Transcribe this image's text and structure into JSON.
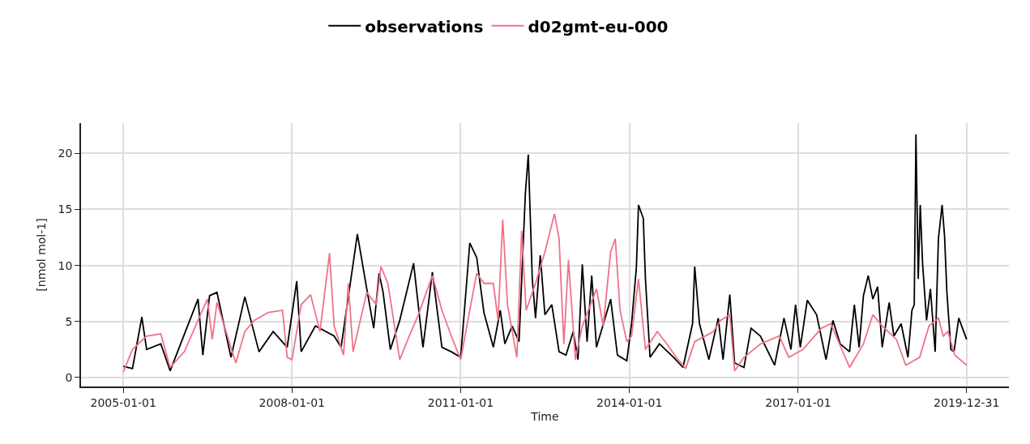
{
  "chart_data": {
    "type": "line",
    "xlabel": "Time",
    "ylabel": "[nmol mol-1]",
    "xlim": [
      "2004-04-01",
      "2020-10-01"
    ],
    "xticks": [
      "2005-01-01",
      "2008-01-01",
      "2011-01-01",
      "2014-01-01",
      "2017-01-01",
      "2019-12-31"
    ],
    "ylim": [
      -0.8,
      22.7
    ],
    "yticks": [
      0,
      5,
      10,
      15,
      20
    ],
    "grid": true,
    "legend": "top",
    "line_style": "solid",
    "series": [
      {
        "name": "observations",
        "color": "#000000",
        "x": [
          "2005-01-01",
          "2005-03-01",
          "2005-05-01",
          "2005-06-01",
          "2005-09-01",
          "2005-11-01",
          "2006-05-01",
          "2006-06-01",
          "2006-07-15",
          "2006-09-01",
          "2006-12-01",
          "2007-03-01",
          "2007-06-01",
          "2007-09-01",
          "2007-12-01",
          "2008-02-01",
          "2008-03-01",
          "2008-06-01",
          "2008-10-01",
          "2008-11-15",
          "2009-03-01",
          "2009-05-01",
          "2009-06-15",
          "2009-07-20",
          "2009-08-15",
          "2009-10-01",
          "2009-12-01",
          "2010-03-01",
          "2010-05-01",
          "2010-07-01",
          "2010-09-01",
          "2010-11-01",
          "2011-01-01",
          "2011-03-01",
          "2011-04-15",
          "2011-06-01",
          "2011-08-01",
          "2011-09-15",
          "2011-10-15",
          "2011-12-01",
          "2012-01-15",
          "2012-02-25",
          "2012-03-15",
          "2012-04-10",
          "2012-05-01",
          "2012-06-01",
          "2012-07-01",
          "2012-08-15",
          "2012-10-01",
          "2012-11-15",
          "2013-01-01",
          "2013-02-01",
          "2013-03-01",
          "2013-04-01",
          "2013-05-01",
          "2013-06-01",
          "2013-09-01",
          "2013-10-15",
          "2013-12-15",
          "2014-01-15",
          "2014-02-15",
          "2014-03-01",
          "2014-04-01",
          "2014-04-15",
          "2014-05-15",
          "2014-07-15",
          "2014-10-15",
          "2014-12-15",
          "2015-02-15",
          "2015-03-01",
          "2015-04-01",
          "2015-06-01",
          "2015-08-01",
          "2015-09-01",
          "2015-10-15",
          "2015-11-15",
          "2016-01-15",
          "2016-03-01",
          "2016-05-01",
          "2016-08-01",
          "2016-10-01",
          "2016-11-15",
          "2016-12-15",
          "2017-01-15",
          "2017-03-01",
          "2017-05-01",
          "2017-07-01",
          "2017-08-15",
          "2017-10-01",
          "2017-12-01",
          "2018-01-01",
          "2018-02-01",
          "2018-03-01",
          "2018-04-01",
          "2018-05-01",
          "2018-06-01",
          "2018-07-01",
          "2018-08-15",
          "2018-09-15",
          "2018-11-01",
          "2018-12-15",
          "2019-01-10",
          "2019-01-25",
          "2019-02-05",
          "2019-02-20",
          "2019-03-05",
          "2019-03-20",
          "2019-04-15",
          "2019-05-10",
          "2019-06-10",
          "2019-07-01",
          "2019-07-25",
          "2019-08-10",
          "2019-08-25",
          "2019-09-20",
          "2019-10-10",
          "2019-11-10",
          "2019-12-31"
        ],
        "values": [
          1.0,
          0.8,
          5.4,
          2.5,
          3.0,
          0.6,
          7.0,
          2.0,
          7.3,
          7.6,
          1.8,
          7.2,
          2.3,
          4.1,
          2.7,
          8.6,
          2.3,
          4.6,
          3.7,
          2.7,
          12.8,
          7.9,
          4.4,
          9.3,
          7.6,
          2.5,
          5.1,
          10.2,
          2.7,
          9.4,
          2.7,
          2.3,
          1.8,
          12.0,
          10.7,
          5.8,
          2.7,
          6.0,
          3.0,
          4.6,
          3.2,
          16.4,
          19.9,
          8.8,
          5.3,
          10.9,
          5.6,
          6.5,
          2.3,
          2.0,
          4.1,
          1.6,
          10.1,
          3.2,
          9.1,
          2.7,
          7.0,
          2.0,
          1.5,
          4.8,
          9.8,
          15.4,
          14.2,
          8.8,
          1.8,
          3.0,
          1.8,
          0.9,
          4.8,
          9.9,
          4.8,
          1.6,
          5.3,
          1.6,
          7.4,
          1.3,
          0.9,
          4.4,
          3.7,
          1.1,
          5.3,
          2.5,
          6.5,
          2.7,
          6.9,
          5.6,
          1.6,
          5.1,
          3.0,
          2.3,
          6.5,
          2.7,
          7.3,
          9.1,
          7.0,
          8.1,
          2.7,
          6.7,
          3.7,
          4.8,
          1.8,
          6.0,
          6.5,
          21.7,
          8.8,
          15.4,
          10.2,
          5.1,
          7.9,
          2.3,
          12.4,
          15.4,
          12.6,
          7.6,
          2.5,
          2.3,
          5.3,
          3.4
        ]
      },
      {
        "name": "d02gmt-eu-000",
        "color": "#f07388",
        "x": [
          "2005-01-01",
          "2005-03-01",
          "2005-06-01",
          "2005-09-01",
          "2005-11-01",
          "2006-02-01",
          "2006-05-01",
          "2006-07-01",
          "2006-08-01",
          "2006-09-01",
          "2007-01-01",
          "2007-03-01",
          "2007-05-01",
          "2007-08-01",
          "2007-11-01",
          "2007-12-01",
          "2008-01-01",
          "2008-03-01",
          "2008-05-01",
          "2008-07-01",
          "2008-09-01",
          "2008-10-01",
          "2008-12-01",
          "2009-01-01",
          "2009-02-01",
          "2009-05-01",
          "2009-07-01",
          "2009-08-01",
          "2009-09-15",
          "2009-12-01",
          "2010-02-01",
          "2010-04-01",
          "2010-07-01",
          "2010-09-01",
          "2010-11-01",
          "2011-01-01",
          "2011-03-01",
          "2011-04-15",
          "2011-06-01",
          "2011-08-01",
          "2011-09-01",
          "2011-10-01",
          "2011-11-01",
          "2012-01-01",
          "2012-02-01",
          "2012-03-01",
          "2012-05-01",
          "2012-07-01",
          "2012-09-01",
          "2012-10-01",
          "2012-11-01",
          "2012-12-01",
          "2013-01-15",
          "2013-03-01",
          "2013-06-01",
          "2013-07-15",
          "2013-09-01",
          "2013-10-01",
          "2013-11-01",
          "2013-12-15",
          "2014-01-15",
          "2014-03-01",
          "2014-04-15",
          "2014-07-01",
          "2014-09-01",
          "2014-11-01",
          "2015-01-01",
          "2015-03-01",
          "2015-07-01",
          "2015-08-15",
          "2015-10-15",
          "2015-11-15",
          "2016-01-15",
          "2016-05-01",
          "2016-09-01",
          "2016-11-01",
          "2017-02-01",
          "2017-06-01",
          "2017-08-01",
          "2017-12-01",
          "2018-03-01",
          "2018-05-01",
          "2018-07-01",
          "2018-10-01",
          "2018-12-01",
          "2019-03-01",
          "2019-05-01",
          "2019-07-01",
          "2019-08-01",
          "2019-09-01",
          "2019-10-15",
          "2019-12-31"
        ],
        "values": [
          0.5,
          2.5,
          3.7,
          3.9,
          0.9,
          2.3,
          5.1,
          7.0,
          3.4,
          6.7,
          1.3,
          4.1,
          5.1,
          5.8,
          6.0,
          1.8,
          1.6,
          6.5,
          7.4,
          4.1,
          11.1,
          4.6,
          2.0,
          8.4,
          2.3,
          7.6,
          6.5,
          9.9,
          8.4,
          1.6,
          3.7,
          5.6,
          9.1,
          6.0,
          3.7,
          1.6,
          6.0,
          9.3,
          8.4,
          8.4,
          5.1,
          14.1,
          6.5,
          1.8,
          13.1,
          6.0,
          8.4,
          11.2,
          14.6,
          12.4,
          3.0,
          10.5,
          1.6,
          4.6,
          7.9,
          4.6,
          11.2,
          12.4,
          6.0,
          3.2,
          3.7,
          8.8,
          2.5,
          4.1,
          3.0,
          1.8,
          0.8,
          3.2,
          4.1,
          5.1,
          5.6,
          0.6,
          1.8,
          3.0,
          3.7,
          1.8,
          2.5,
          4.4,
          4.8,
          0.9,
          3.0,
          5.6,
          4.6,
          3.4,
          1.1,
          1.8,
          4.6,
          5.3,
          3.7,
          4.1,
          2.0,
          1.1
        ]
      }
    ]
  }
}
